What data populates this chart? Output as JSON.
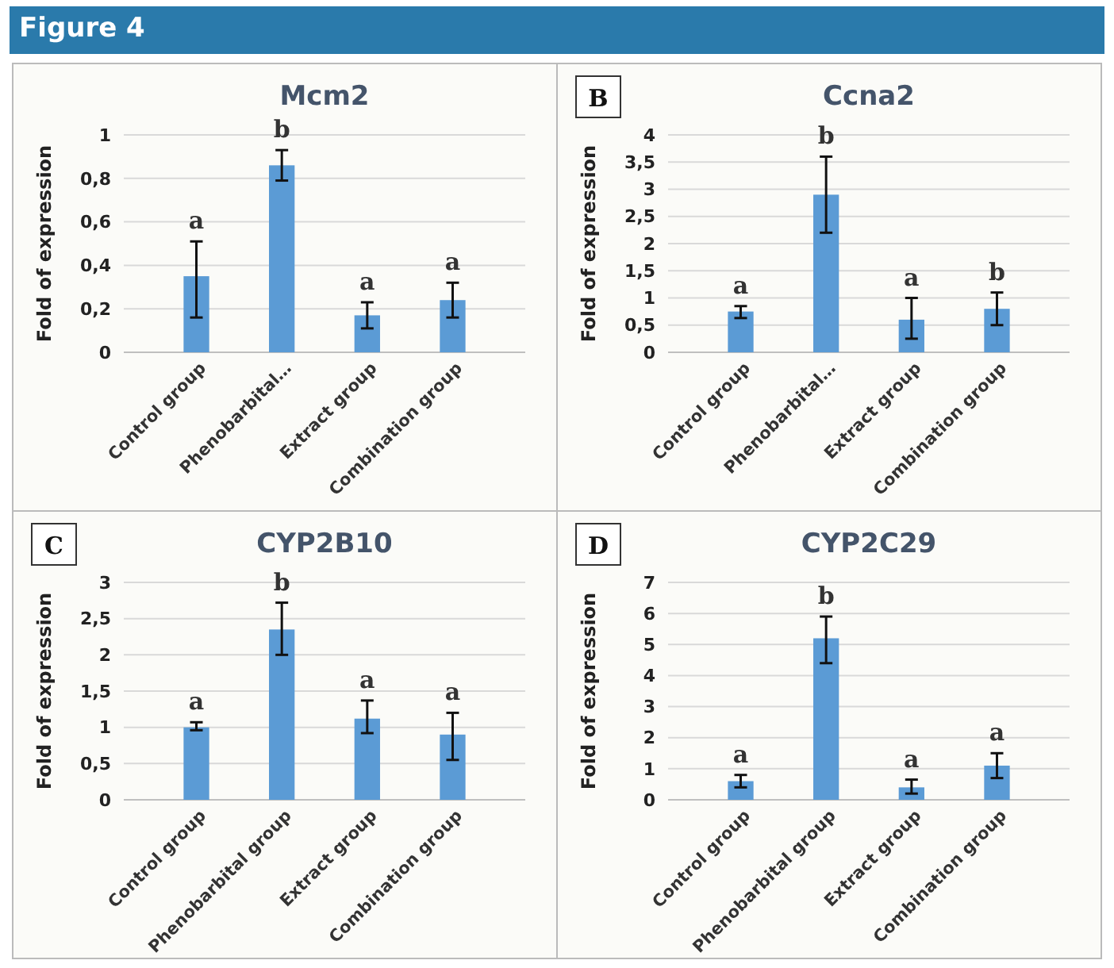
{
  "chart_data": [
    {
      "type": "bar",
      "title": "Mcm2",
      "ylabel": "Fold of expression",
      "categories": [
        "Control group",
        "Phenobarbital…",
        "Extract group",
        "Combination group"
      ],
      "color": "#5b9bd5",
      "values": [
        0.35,
        0.86,
        0.17,
        0.24
      ],
      "errors": [
        [
          0.16,
          0.51
        ],
        [
          0.79,
          0.93
        ],
        [
          0.11,
          0.23
        ],
        [
          0.16,
          0.32
        ]
      ],
      "ylim": [
        0,
        1
      ],
      "yticks": [
        0,
        {
          "value": 0.2,
          "label": "0,2"
        },
        {
          "value": 0.4,
          "label": "0,4"
        },
        {
          "value": 0.6,
          "label": "0,6"
        },
        {
          "value": 0.8,
          "label": "0,8"
        },
        1
      ],
      "grid": "y",
      "annotations": [
        "Figure 4",
        "a",
        "b",
        "a",
        "a"
      ]
    },
    {
      "type": "bar",
      "title": "Ccna2",
      "ylabel": "Fold of expression",
      "categories": [
        "Control group",
        "Phenobarbital…",
        "Extract group",
        "Combination group"
      ],
      "color": "#5b9bd5",
      "values": [
        0.75,
        2.9,
        0.6,
        0.8
      ],
      "errors": [
        [
          0.63,
          0.85
        ],
        [
          2.2,
          3.6
        ],
        [
          0.25,
          1.0
        ],
        [
          0.5,
          1.1
        ]
      ],
      "ylim": [
        0,
        4
      ],
      "yticks": [
        0,
        {
          "value": 0.5,
          "label": "0,5"
        },
        1,
        {
          "value": 1.5,
          "label": "1,5"
        },
        2,
        {
          "value": 2.5,
          "label": "2,5"
        },
        3,
        {
          "value": 3.5,
          "label": "3,5"
        },
        4
      ],
      "grid": "y",
      "annotations": [
        "B",
        "a",
        "b",
        "a",
        "b"
      ]
    },
    {
      "type": "bar",
      "title": "CYP2B10",
      "ylabel": "Fold of expression",
      "categories": [
        "Control group",
        "Phenobarbital group",
        "Extract group",
        "Combination group"
      ],
      "color": "#5b9bd5",
      "values": [
        1.0,
        2.35,
        1.12,
        0.9
      ],
      "errors": [
        [
          0.96,
          1.07
        ],
        [
          2.0,
          2.72
        ],
        [
          0.92,
          1.37
        ],
        [
          0.55,
          1.2
        ]
      ],
      "ylim": [
        0,
        3
      ],
      "yticks": [
        0,
        {
          "value": 0.5,
          "label": "0,5"
        },
        1,
        {
          "value": 1.5,
          "label": "1,5"
        },
        2,
        {
          "value": 2.5,
          "label": "2,5"
        },
        3
      ],
      "grid": "y",
      "annotations": [
        "C",
        "a",
        "b",
        "a",
        "a"
      ]
    },
    {
      "type": "bar",
      "title": "CYP2C29",
      "ylabel": "Fold of expression",
      "categories": [
        "Control group",
        "Phenobarbital group",
        "Extract group",
        "Combination group"
      ],
      "color": "#5b9bd5",
      "values": [
        0.6,
        5.2,
        0.4,
        1.1
      ],
      "errors": [
        [
          0.4,
          0.8
        ],
        [
          4.4,
          5.9
        ],
        [
          0.2,
          0.65
        ],
        [
          0.7,
          1.5
        ]
      ],
      "ylim": [
        0,
        7
      ],
      "yticks": [
        0,
        1,
        2,
        3,
        4,
        5,
        6,
        7
      ],
      "grid": "y",
      "annotations": [
        "D",
        "a",
        "b",
        "a",
        "a"
      ]
    }
  ]
}
